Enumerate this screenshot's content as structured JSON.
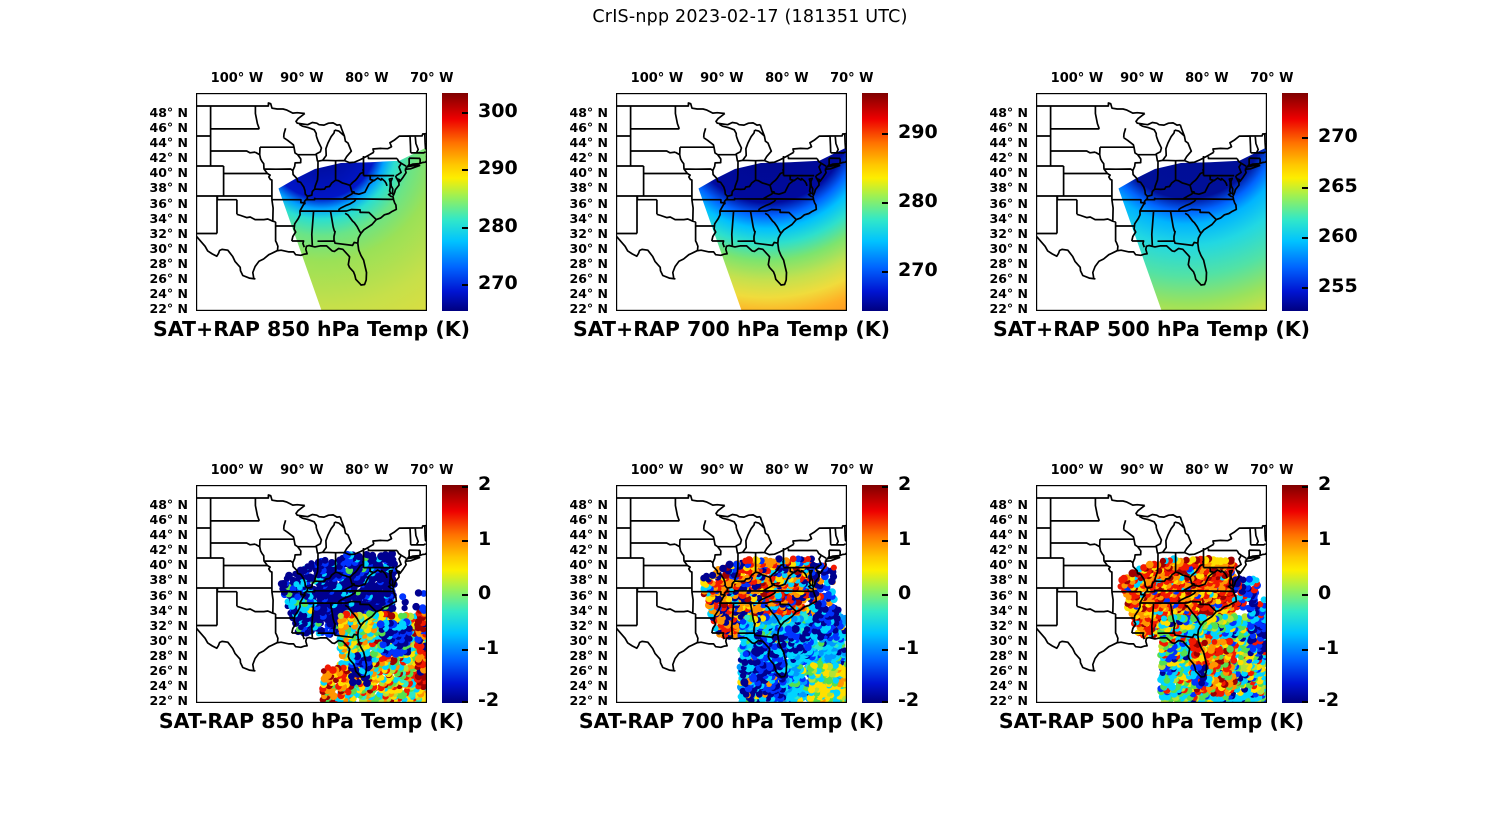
{
  "figure": {
    "title": "CrIS-npp 2023-02-17 (181351 UTC)",
    "background": "#ffffff",
    "text_color": "#000000"
  },
  "geo_axes": {
    "lon_tick_labels": [
      "100° W",
      "90° W",
      "80° W",
      "70° W"
    ],
    "lon_tick_values_degW": [
      100,
      90,
      80,
      70
    ],
    "lat_tick_labels": [
      "48° N",
      "46° N",
      "44° N",
      "42° N",
      "40° N",
      "38° N",
      "36° N",
      "34° N",
      "32° N",
      "30° N",
      "28° N",
      "26° N",
      "24° N",
      "22° N"
    ],
    "lat_tick_values_degN": [
      48,
      46,
      44,
      42,
      40,
      38,
      36,
      34,
      32,
      30,
      28,
      26,
      24,
      22
    ],
    "lon_range_degW": [
      106.3,
      70.74
    ],
    "lat_range_degN": [
      21.67,
      50.73
    ],
    "region": "Eastern and Central United States with state boundaries",
    "swath_polygon_degW_degN": [
      [
        93.6,
        38.0
      ],
      [
        91.0,
        39.3
      ],
      [
        88.0,
        40.6
      ],
      [
        84.0,
        41.4
      ],
      [
        79.5,
        41.5
      ],
      [
        75.0,
        41.7
      ],
      [
        70.74,
        43.5
      ],
      [
        70.74,
        21.67
      ],
      [
        86.95,
        21.67
      ]
    ]
  },
  "colormap": {
    "name": "jet",
    "stops": [
      {
        "frac": 0,
        "color": "#7f0000"
      },
      {
        "frac": 0.12,
        "color": "#ee0000"
      },
      {
        "frac": 0.23,
        "color": "#ff7300"
      },
      {
        "frac": 0.33,
        "color": "#ffc800"
      },
      {
        "frac": 0.39,
        "color": "#fdee00"
      },
      {
        "frac": 0.48,
        "color": "#96f05a"
      },
      {
        "frac": 0.58,
        "color": "#32e8c8"
      },
      {
        "frac": 0.68,
        "color": "#00c3ff"
      },
      {
        "frac": 0.8,
        "color": "#0064ff"
      },
      {
        "frac": 0.91,
        "color": "#0014d2"
      },
      {
        "frac": 1,
        "color": "#000080"
      }
    ]
  },
  "palette": {
    "navy": "#000090",
    "blue": "#0033ff",
    "lightblue": "#0099ff",
    "cyan": "#00d5ff",
    "teal": "#2ee8c8",
    "green": "#55e04f",
    "yellowgreen": "#b4e235",
    "yellow": "#ffe000",
    "orange": "#ff9500",
    "red": "#f21800",
    "darkred": "#9e0000"
  },
  "chart_data": [
    {
      "id": "sat-plus-rap-850",
      "row": 0,
      "col": 0,
      "type": "heatmap",
      "title": "SAT+RAP 850 hPa Temp (K)",
      "variable": "Temperature",
      "units": "K",
      "colorbar": {
        "colormap": "jet",
        "range_K": [
          265.3,
          303.3
        ],
        "tick_values": [
          300,
          290,
          280,
          270
        ]
      },
      "swath": {
        "radial_center_degW_degN": [
          87,
          44
        ],
        "radius_px": 210,
        "stops": [
          {
            "frac": 0,
            "color": "#000886",
            "approx_K": 266
          },
          {
            "frac": 0.26,
            "color": "#0016c8",
            "approx_K": 268
          },
          {
            "frac": 0.31,
            "color": "#00a0ff",
            "approx_K": 274
          },
          {
            "frac": 0.36,
            "color": "#2adfd0",
            "approx_K": 278
          },
          {
            "frac": 0.44,
            "color": "#6ae487",
            "approx_K": 282
          },
          {
            "frac": 0.56,
            "color": "#9ae157",
            "approx_K": 284
          },
          {
            "frac": 0.78,
            "color": "#c6e04a",
            "approx_K": 286
          },
          {
            "frac": 1,
            "color": "#e0dd3e",
            "approx_K": 288
          }
        ],
        "summary": "Cold pool ~266-270 K over TN/KY valley, warming southeastward to ~285-288 K over the western Atlantic and Gulf"
      }
    },
    {
      "id": "sat-plus-rap-700",
      "row": 0,
      "col": 1,
      "type": "heatmap",
      "title": "SAT+RAP 700 hPa Temp (K)",
      "variable": "Temperature",
      "units": "K",
      "colorbar": {
        "colormap": "jet",
        "range_K": [
          264.2,
          295.8
        ],
        "tick_values": [
          290,
          280,
          270
        ]
      },
      "swath": {
        "radial_center_degW_degN": [
          83,
          47
        ],
        "radius_px": 215,
        "stops": [
          {
            "frac": 0,
            "color": "#000886",
            "approx_K": 266
          },
          {
            "frac": 0.38,
            "color": "#000a9e",
            "approx_K": 267
          },
          {
            "frac": 0.44,
            "color": "#0064ff",
            "approx_K": 272
          },
          {
            "frac": 0.5,
            "color": "#00c0ff",
            "approx_K": 276
          },
          {
            "frac": 0.57,
            "color": "#2ee0cc",
            "approx_K": 279
          },
          {
            "frac": 0.65,
            "color": "#7ce46e",
            "approx_K": 282
          },
          {
            "frac": 0.74,
            "color": "#c4e14e",
            "approx_K": 285
          },
          {
            "frac": 0.82,
            "color": "#f0dc3c",
            "approx_K": 288
          },
          {
            "frac": 0.9,
            "color": "#ffae24",
            "approx_K": 290
          },
          {
            "frac": 1,
            "color": "#ff8d1e",
            "approx_K": 292
          }
        ],
        "summary": "Cold ~266-270 K over interior Southeast and coastal Northeast, warming to ~288-292 K (orange) south of ~27N"
      }
    },
    {
      "id": "sat-plus-rap-500",
      "row": 0,
      "col": 2,
      "type": "heatmap",
      "title": "SAT+RAP 500 hPa Temp (K)",
      "variable": "Temperature",
      "units": "K",
      "colorbar": {
        "colormap": "jet",
        "range_K": [
          252.6,
          274.4
        ],
        "tick_values": [
          270,
          265,
          260,
          255
        ]
      },
      "swath": {
        "radial_center_degW_degN": [
          83,
          47
        ],
        "radius_px": 215,
        "stops": [
          {
            "frac": 0,
            "color": "#000a96",
            "approx_K": 255
          },
          {
            "frac": 0.36,
            "color": "#001098",
            "approx_K": 256
          },
          {
            "frac": 0.42,
            "color": "#0064ff",
            "approx_K": 259
          },
          {
            "frac": 0.48,
            "color": "#00b4ff",
            "approx_K": 261
          },
          {
            "frac": 0.58,
            "color": "#22d8e2",
            "approx_K": 263
          },
          {
            "frac": 0.72,
            "color": "#52e2a5",
            "approx_K": 265
          },
          {
            "frac": 0.85,
            "color": "#9ae25c",
            "approx_K": 267
          },
          {
            "frac": 0.95,
            "color": "#cfe044",
            "approx_K": 269
          },
          {
            "frac": 1,
            "color": "#e8d93a",
            "approx_K": 270
          }
        ],
        "summary": "Cold ~255-258 K over TN/KY and New England coast, broad cyan ~261-264 K over Southeast, ~268-270 K far south"
      }
    },
    {
      "id": "sat-minus-rap-850",
      "row": 1,
      "col": 0,
      "type": "scatter",
      "title": "SAT-RAP 850 hPa Temp (K)",
      "variable": "Temperature difference",
      "units": "K",
      "colorbar": {
        "colormap": "jet",
        "range_K": [
          -2,
          2
        ],
        "tick_values": [
          2,
          1,
          0,
          -1,
          -2
        ]
      },
      "regions": [
        {
          "name": "land-cold-bias",
          "lon_degW": [
            93.6,
            76.0
          ],
          "lat_degN": [
            31,
            41.5
          ],
          "density": 0.95,
          "palette": {
            "navy": 0.76,
            "blue": 0.15,
            "cyan": 0.06,
            "green": 0.03
          }
        },
        {
          "name": "land-west-fringe",
          "lon_degW": [
            91.8,
            88.3
          ],
          "lat_degN": [
            33.5,
            38
          ],
          "density": 0.55,
          "palette": {
            "cyan": 0.45,
            "blue": 0.25,
            "navy": 0.15,
            "green": 0.1,
            "yellow": 0.05
          }
        },
        {
          "name": "ocean-mixed",
          "lon_degW": [
            84.5,
            70.74
          ],
          "lat_degN": [
            21.7,
            33.8
          ],
          "density": 0.95,
          "palette": {
            "yellow": 0.18,
            "yellowgreen": 0.1,
            "green": 0.12,
            "cyan": 0.17,
            "teal": 0.08,
            "orange": 0.17,
            "red": 0.11,
            "darkred": 0.07
          }
        },
        {
          "name": "gulf-warm-bias",
          "lon_degW": [
            86.95,
            83.0
          ],
          "lat_degN": [
            21.7,
            26.3
          ],
          "density": 0.9,
          "palette": {
            "red": 0.3,
            "orange": 0.27,
            "darkred": 0.16,
            "yellow": 0.12,
            "cyan": 0.08,
            "green": 0.07
          }
        },
        {
          "name": "south-florida-cold",
          "lon_degW": [
            82.4,
            79.8
          ],
          "lat_degN": [
            24.5,
            28.5
          ],
          "density": 0.65,
          "palette": {
            "navy": 0.5,
            "blue": 0.3,
            "cyan": 0.2
          }
        },
        {
          "name": "offshore-cold",
          "lon_degW": [
            78.2,
            73.5
          ],
          "lat_degN": [
            28.3,
            32.6
          ],
          "density": 0.9,
          "palette": {
            "navy": 0.55,
            "blue": 0.25,
            "cyan": 0.14,
            "green": 0.06
          }
        },
        {
          "name": "east-edge-warm",
          "lon_degW": [
            72.4,
            70.74
          ],
          "lat_degN": [
            24,
            34
          ],
          "density": 0.9,
          "palette": {
            "red": 0.33,
            "darkred": 0.28,
            "orange": 0.2,
            "blue": 0.11,
            "navy": 0.08
          }
        },
        {
          "name": "coastal-sparse",
          "lon_degW": [
            74.5,
            70.74
          ],
          "lat_degN": [
            33.5,
            36.5
          ],
          "density": 0.25,
          "palette": {
            "navy": 0.6,
            "blue": 0.3,
            "darkred": 0.1
          }
        }
      ],
      "summary": "Strong cold bias (about -2 K, navy) over the Southeast land swath; mixed +/- differences over the Atlantic with warm bias (+1 to +2 K) southwest and along the eastern edge"
    },
    {
      "id": "sat-minus-rap-700",
      "row": 1,
      "col": 1,
      "type": "scatter",
      "title": "SAT-RAP 700 hPa Temp (K)",
      "variable": "Temperature difference",
      "units": "K",
      "colorbar": {
        "colormap": "jet",
        "range_K": [
          -2,
          2
        ],
        "tick_values": [
          2,
          1,
          0,
          -1,
          -2
        ]
      },
      "regions": [
        {
          "name": "land-mixed",
          "lon_degW": [
            93.6,
            76.0
          ],
          "lat_degN": [
            30.8,
            41
          ],
          "density": 0.95,
          "palette": {
            "orange": 0.28,
            "red": 0.22,
            "navy": 0.17,
            "blue": 0.08,
            "cyan": 0.12,
            "yellow": 0.08,
            "darkred": 0.05
          }
        },
        {
          "name": "ocean-cool",
          "lon_degW": [
            86.95,
            70.74
          ],
          "lat_degN": [
            21.7,
            33
          ],
          "density": 0.95,
          "palette": {
            "cyan": 0.36,
            "lightblue": 0.22,
            "blue": 0.12,
            "navy": 0.07,
            "teal": 0.08,
            "green": 0.09,
            "yellow": 0.05,
            "orange": 0.01
          }
        },
        {
          "name": "southwest-cold",
          "lon_degW": [
            86.95,
            80.5
          ],
          "lat_degN": [
            22.3,
            28.3
          ],
          "density": 0.8,
          "palette": {
            "navy": 0.42,
            "blue": 0.3,
            "cyan": 0.22,
            "orange": 0.06
          }
        },
        {
          "name": "florida-cold",
          "lon_degW": [
            85,
            80.5
          ],
          "lat_degN": [
            25.5,
            30.5
          ],
          "density": 0.55,
          "palette": {
            "navy": 0.4,
            "blue": 0.3,
            "cyan": 0.3
          }
        },
        {
          "name": "offshore-cold",
          "lon_degW": [
            80,
            76.5
          ],
          "lat_degN": [
            28.3,
            31.8
          ],
          "density": 0.8,
          "palette": {
            "navy": 0.5,
            "blue": 0.3,
            "cyan": 0.2
          }
        },
        {
          "name": "southeast-warm-streak",
          "lon_degW": [
            76.5,
            70.74
          ],
          "lat_degN": [
            21.7,
            26.8
          ],
          "density": 0.9,
          "palette": {
            "yellow": 0.42,
            "yellowgreen": 0.15,
            "green": 0.2,
            "cyan": 0.18,
            "orange": 0.05
          }
        },
        {
          "name": "coastal-cold",
          "lon_degW": [
            76,
            72
          ],
          "lat_degN": [
            30.5,
            34.5
          ],
          "density": 0.85,
          "palette": {
            "navy": 0.48,
            "blue": 0.3,
            "cyan": 0.22
          }
        },
        {
          "name": "northeast-mixed",
          "lon_degW": [
            76.5,
            73
          ],
          "lat_degN": [
            34.5,
            40
          ],
          "density": 0.6,
          "palette": {
            "navy": 0.35,
            "blue": 0.25,
            "orange": 0.2,
            "red": 0.1,
            "cyan": 0.1
          }
        }
      ],
      "summary": "Warm bias (+1 to +2 K) patches over TN/KY/GA mixed with cold pockets; mostly weak cold bias (0 to -1 K, cyan) over the Atlantic with -2 K clusters and a +0.5 K streak in the far southeast"
    },
    {
      "id": "sat-minus-rap-500",
      "row": 1,
      "col": 2,
      "type": "scatter",
      "title": "SAT-RAP 500 hPa Temp (K)",
      "variable": "Temperature difference",
      "units": "K",
      "colorbar": {
        "colormap": "jet",
        "range_K": [
          -2,
          2
        ],
        "tick_values": [
          2,
          1,
          0,
          -1,
          -2
        ]
      },
      "regions": [
        {
          "name": "land-warm-bias",
          "lon_degW": [
            93.6,
            76
          ],
          "lat_degN": [
            30.8,
            41
          ],
          "density": 1.0,
          "palette": {
            "red": 0.32,
            "orange": 0.26,
            "darkred": 0.17,
            "yellow": 0.15,
            "blue": 0.05,
            "cyan": 0.05
          }
        },
        {
          "name": "ocean-mixed",
          "lon_degW": [
            86.95,
            70.74
          ],
          "lat_degN": [
            21.7,
            33
          ],
          "density": 0.95,
          "palette": {
            "cyan": 0.28,
            "green": 0.24,
            "yellowgreen": 0.1,
            "yellow": 0.12,
            "blue": 0.12,
            "navy": 0.07,
            "red": 0.07
          }
        },
        {
          "name": "east-cold",
          "lon_degW": [
            73.6,
            70.74
          ],
          "lat_degN": [
            28.5,
            35.5
          ],
          "density": 0.9,
          "palette": {
            "navy": 0.38,
            "blue": 0.3,
            "cyan": 0.2,
            "red": 0.12
          }
        },
        {
          "name": "red-streak",
          "lon_degW": [
            82.5,
            76
          ],
          "lat_degN": [
            23,
            30
          ],
          "density": 0.7,
          "palette": {
            "red": 0.4,
            "orange": 0.24,
            "darkred": 0.14,
            "yellow": 0.12,
            "green": 0.1
          }
        },
        {
          "name": "south-florida-cold",
          "lon_degW": [
            82,
            79.6
          ],
          "lat_degN": [
            24,
            26.4
          ],
          "density": 0.6,
          "palette": {
            "blue": 0.4,
            "navy": 0.3,
            "cyan": 0.3
          }
        },
        {
          "name": "coastal-mixed",
          "lon_degW": [
            75.5,
            72.5
          ],
          "lat_degN": [
            34.5,
            38.5
          ],
          "density": 0.7,
          "palette": {
            "blue": 0.35,
            "navy": 0.25,
            "cyan": 0.2,
            "red": 0.2
          }
        }
      ],
      "summary": "Strong warm bias (+1 to +2 K, red/orange) over the Southeast land swath; near-zero to cold bias over the Atlantic with -1.5 to -2 K cluster near the eastern edge and warm streaks near Florida"
    }
  ]
}
